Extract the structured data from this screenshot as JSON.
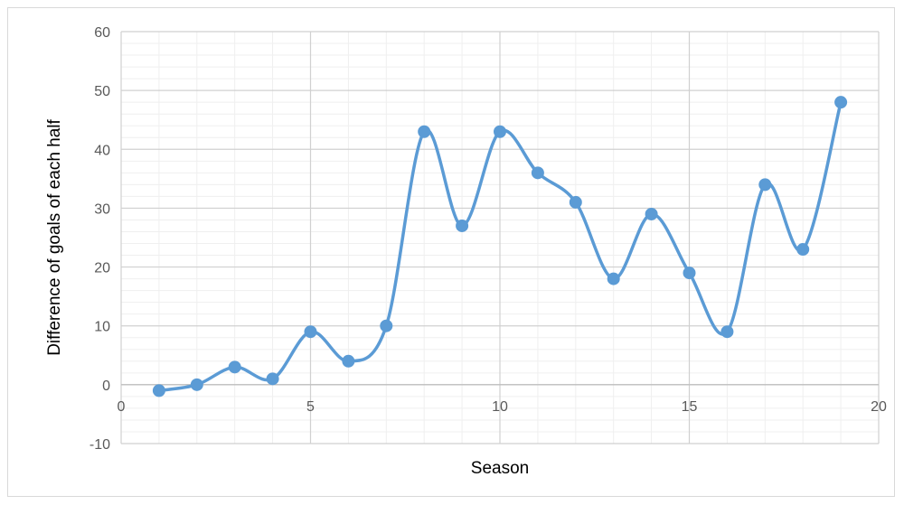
{
  "chart_data": {
    "type": "scatter",
    "subtype": "smoothed-line-with-markers",
    "title": "",
    "xlabel": "Season",
    "ylabel": "Difference of goals of each half",
    "xlim": [
      0,
      20
    ],
    "ylim": [
      -10,
      60
    ],
    "x_major_ticks": [
      0,
      5,
      10,
      15,
      20
    ],
    "y_major_ticks": [
      -10,
      0,
      10,
      20,
      30,
      40,
      50,
      60
    ],
    "x_tick_labels": [
      "0",
      "5",
      "10",
      "15",
      "20"
    ],
    "y_tick_labels": [
      "-10",
      "0",
      "10",
      "20",
      "30",
      "40",
      "50",
      "60"
    ],
    "grid": true,
    "legend": "none",
    "series": [
      {
        "color": "#5b9bd5",
        "x": [
          1,
          2,
          3,
          4,
          5,
          6,
          7,
          8,
          9,
          10,
          11,
          12,
          13,
          14,
          15,
          16,
          17,
          18,
          19
        ],
        "y": [
          -1,
          0,
          3,
          1,
          9,
          4,
          10,
          43,
          27,
          43,
          36,
          31,
          18,
          29,
          19,
          9,
          34,
          23,
          48
        ]
      }
    ]
  }
}
